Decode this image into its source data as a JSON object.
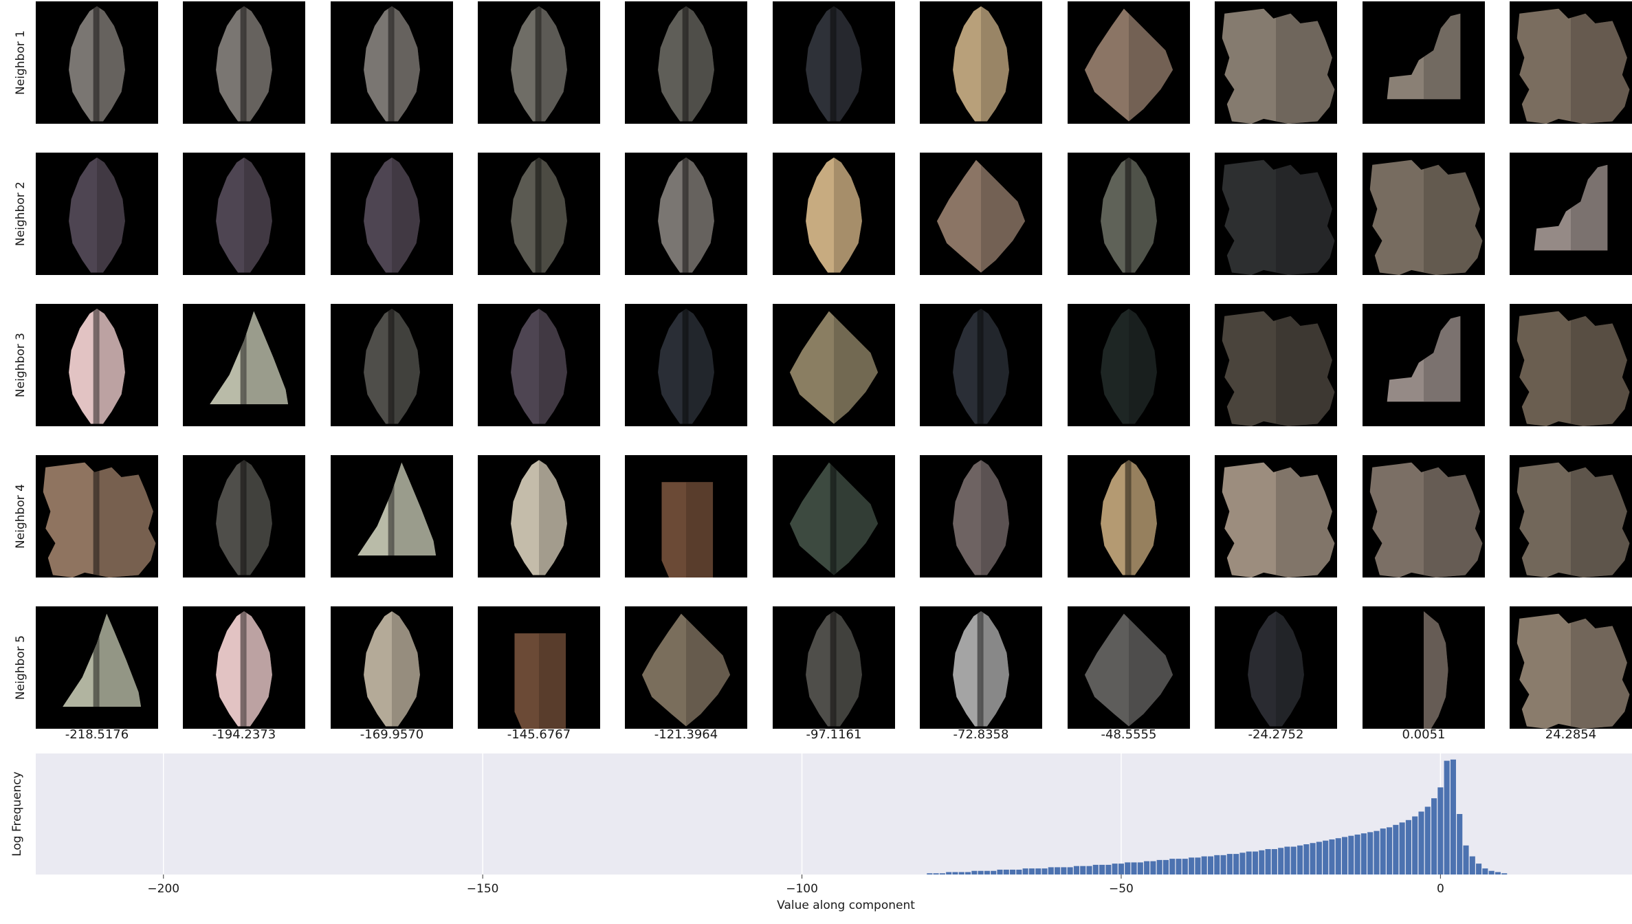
{
  "row_labels": [
    "Neighbor 1",
    "Neighbor 2",
    "Neighbor 3",
    "Neighbor 4",
    "Neighbor 5"
  ],
  "column_values": [
    "-218.5176",
    "-194.2373",
    "-169.9570",
    "-145.6767",
    "-121.3964",
    "-97.1161",
    "-72.8358",
    "-48.5555",
    "-24.2752",
    "0.0051",
    "24.2854"
  ],
  "colors": {
    "background": "#eaeaf2",
    "bar": "#4c72b0",
    "grid": "#ffffff",
    "tile_background": "#000000"
  },
  "patches": [
    [
      {
        "shape": "leaf",
        "color": "#7a7672",
        "stripe": true
      },
      {
        "shape": "leaf",
        "color": "#7a7672",
        "stripe": true
      },
      {
        "shape": "leaf",
        "color": "#7a7672",
        "stripe": true
      },
      {
        "shape": "leaf",
        "color": "#6f6d66",
        "stripe": true
      },
      {
        "shape": "leaf",
        "color": "#5f5e58",
        "stripe": true
      },
      {
        "shape": "leaf",
        "color": "#2e3138",
        "stripe": true
      },
      {
        "shape": "leaf",
        "color": "#b8a07a",
        "stripe": false
      },
      {
        "shape": "diamond",
        "color": "#8b7565",
        "stripe": false
      },
      {
        "shape": "blob",
        "color": "#857b6f",
        "stripe": false
      },
      {
        "shape": "corner",
        "color": "#8a8075",
        "stripe": false
      },
      {
        "shape": "blob",
        "color": "#7a6d5f",
        "stripe": false
      }
    ],
    [
      {
        "shape": "leaf",
        "color": "#4e4552",
        "stripe": false
      },
      {
        "shape": "leaf",
        "color": "#4e4552",
        "stripe": false
      },
      {
        "shape": "leaf",
        "color": "#4e4552",
        "stripe": false
      },
      {
        "shape": "leaf",
        "color": "#5b5a52",
        "stripe": true
      },
      {
        "shape": "leaf",
        "color": "#7a7672",
        "stripe": true
      },
      {
        "shape": "leaf",
        "color": "#c7ab80",
        "stripe": false
      },
      {
        "shape": "diamond",
        "color": "#8b7565",
        "stripe": false
      },
      {
        "shape": "leaf",
        "color": "#5f6258",
        "stripe": true
      },
      {
        "shape": "blob",
        "color": "#2d2f30",
        "stripe": false
      },
      {
        "shape": "blob",
        "color": "#776c60",
        "stripe": false
      },
      {
        "shape": "corner",
        "color": "#958a86",
        "stripe": false
      }
    ],
    [
      {
        "shape": "leaf",
        "color": "#e2c3c3",
        "stripe": true
      },
      {
        "shape": "triangle",
        "color": "#b9bba8",
        "stripe": true
      },
      {
        "shape": "leaf",
        "color": "#4f4e4a",
        "stripe": true
      },
      {
        "shape": "leaf",
        "color": "#4e4552",
        "stripe": false
      },
      {
        "shape": "leaf",
        "color": "#2a2e36",
        "stripe": true
      },
      {
        "shape": "diamond",
        "color": "#8a7e62",
        "stripe": false
      },
      {
        "shape": "leaf",
        "color": "#2a2e36",
        "stripe": true
      },
      {
        "shape": "leaf",
        "color": "#1e2624",
        "stripe": false
      },
      {
        "shape": "blob",
        "color": "#4a443c",
        "stripe": false
      },
      {
        "shape": "corner",
        "color": "#958a86",
        "stripe": false
      },
      {
        "shape": "blob",
        "color": "#6a5e50",
        "stripe": false
      }
    ],
    [
      {
        "shape": "blob",
        "color": "#8f7460",
        "stripe": true
      },
      {
        "shape": "leaf",
        "color": "#4f4e4a",
        "stripe": true
      },
      {
        "shape": "triangle",
        "color": "#b9bba8",
        "stripe": true
      },
      {
        "shape": "leaf",
        "color": "#c4bcaa",
        "stripe": false
      },
      {
        "shape": "rect",
        "color": "#6b4a36",
        "stripe": false
      },
      {
        "shape": "diamond",
        "color": "#3d4a40",
        "stripe": true
      },
      {
        "shape": "leaf",
        "color": "#6e6362",
        "stripe": false
      },
      {
        "shape": "leaf",
        "color": "#b49a72",
        "stripe": true
      },
      {
        "shape": "blob",
        "color": "#9c8d7e",
        "stripe": false
      },
      {
        "shape": "blob",
        "color": "#7b6f65",
        "stripe": false
      },
      {
        "shape": "blob",
        "color": "#72675a",
        "stripe": false
      }
    ],
    [
      {
        "shape": "triangle",
        "color": "#b1b4a0",
        "stripe": true
      },
      {
        "shape": "leaf",
        "color": "#e2c3c3",
        "stripe": true
      },
      {
        "shape": "leaf",
        "color": "#b4aa98",
        "stripe": false
      },
      {
        "shape": "rect",
        "color": "#6b4a36",
        "stripe": false
      },
      {
        "shape": "diamond",
        "color": "#7a6e5c",
        "stripe": false
      },
      {
        "shape": "leaf",
        "color": "#4f4e4a",
        "stripe": true
      },
      {
        "shape": "leaf",
        "color": "#a4a4a4",
        "stripe": true
      },
      {
        "shape": "diamond",
        "color": "#5e5d5b",
        "stripe": false
      },
      {
        "shape": "leaf",
        "color": "#2a2b31",
        "stripe": false
      },
      {
        "shape": "halfleaf",
        "color": "#7a6f66",
        "stripe": false
      },
      {
        "shape": "blob",
        "color": "#8a7c6c",
        "stripe": false
      }
    ]
  ],
  "chart_data": {
    "type": "bar",
    "title": "",
    "xlabel": "Value along component",
    "ylabel": "Log Frequency",
    "xlim": [
      -220,
      30
    ],
    "xticks": [
      -200,
      -150,
      -100,
      -50,
      0
    ],
    "xtick_labels": [
      "−200",
      "−150",
      "−100",
      "−50",
      "0"
    ],
    "grid": true,
    "bin_width": 1,
    "x": [
      -80,
      -79,
      -78,
      -77,
      -76,
      -75,
      -74,
      -73,
      -72,
      -71,
      -70,
      -69,
      -68,
      -67,
      -66,
      -65,
      -64,
      -63,
      -62,
      -61,
      -60,
      -59,
      -58,
      -57,
      -56,
      -55,
      -54,
      -53,
      -52,
      -51,
      -50,
      -49,
      -48,
      -47,
      -46,
      -45,
      -44,
      -43,
      -42,
      -41,
      -40,
      -39,
      -38,
      -37,
      -36,
      -35,
      -34,
      -33,
      -32,
      -31,
      -30,
      -29,
      -28,
      -27,
      -26,
      -25,
      -24,
      -23,
      -22,
      -21,
      -20,
      -19,
      -18,
      -17,
      -16,
      -15,
      -14,
      -13,
      -12,
      -11,
      -10,
      -9,
      -8,
      -7,
      -6,
      -5,
      -4,
      -3,
      -2,
      -1,
      0,
      1,
      2,
      3,
      4,
      5,
      6,
      7,
      8,
      9,
      10
    ],
    "values": [
      0.01,
      0.01,
      0.01,
      0.02,
      0.02,
      0.02,
      0.02,
      0.03,
      0.03,
      0.03,
      0.03,
      0.04,
      0.04,
      0.04,
      0.04,
      0.05,
      0.05,
      0.05,
      0.05,
      0.06,
      0.06,
      0.06,
      0.06,
      0.07,
      0.07,
      0.07,
      0.08,
      0.08,
      0.08,
      0.09,
      0.09,
      0.1,
      0.1,
      0.1,
      0.11,
      0.11,
      0.12,
      0.12,
      0.13,
      0.13,
      0.13,
      0.14,
      0.14,
      0.15,
      0.15,
      0.16,
      0.16,
      0.17,
      0.17,
      0.18,
      0.19,
      0.19,
      0.2,
      0.21,
      0.21,
      0.22,
      0.23,
      0.23,
      0.24,
      0.25,
      0.26,
      0.27,
      0.28,
      0.29,
      0.3,
      0.31,
      0.32,
      0.33,
      0.34,
      0.35,
      0.36,
      0.38,
      0.39,
      0.41,
      0.43,
      0.45,
      0.48,
      0.52,
      0.56,
      0.63,
      0.72,
      0.94,
      0.95,
      0.5,
      0.24,
      0.15,
      0.09,
      0.05,
      0.03,
      0.02,
      0.01
    ]
  }
}
